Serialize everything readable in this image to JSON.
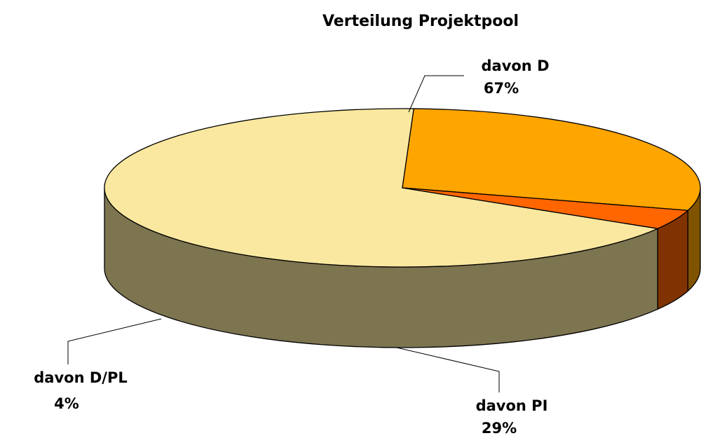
{
  "chart_data": {
    "type": "pie",
    "title": "Verteilung Projektpool",
    "categories": [
      "davon D",
      "davon PI",
      "davon D/PL"
    ],
    "values": [
      67,
      29,
      4
    ],
    "value_labels": [
      "67%",
      "29%",
      "4%"
    ],
    "colors": [
      "#FAE8A0",
      "#FFA500",
      "#FF6600"
    ]
  }
}
